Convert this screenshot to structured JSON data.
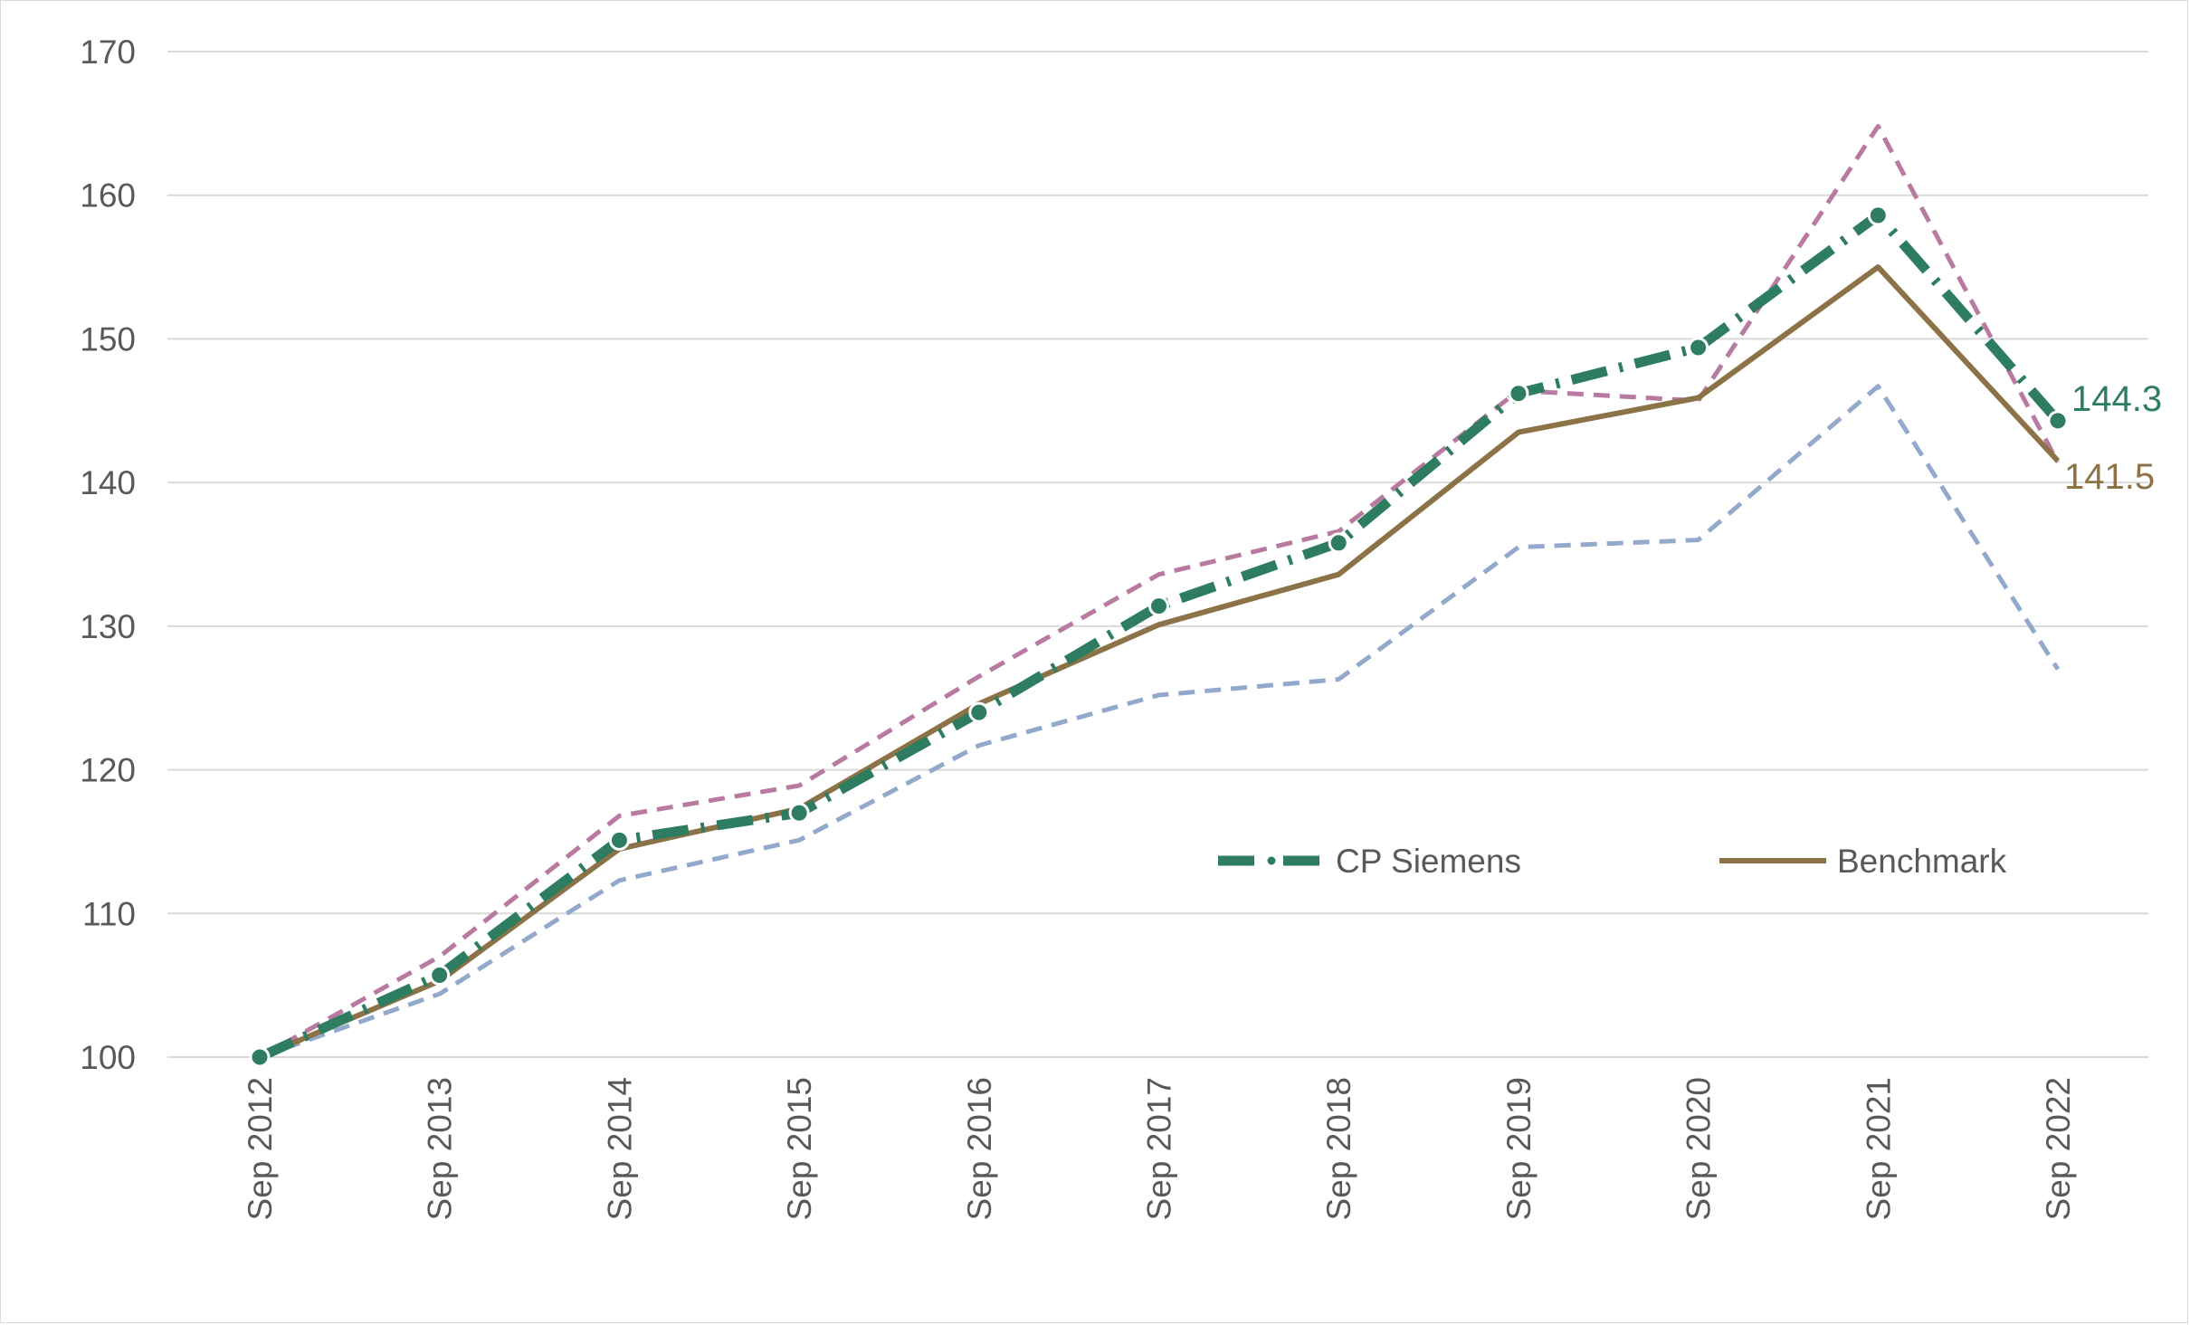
{
  "chart_data": {
    "type": "line",
    "categories": [
      "Sep 2012",
      "Sep 2013",
      "Sep 2014",
      "Sep 2015",
      "Sep 2016",
      "Sep 2017",
      "Sep 2018",
      "Sep 2019",
      "Sep 2020",
      "Sep 2021",
      "Sep 2022"
    ],
    "ylim": [
      100,
      170
    ],
    "yticks": [
      100,
      110,
      120,
      130,
      140,
      150,
      160,
      170
    ],
    "grid": true,
    "legend_position": "lower-right",
    "series": [
      {
        "key": "upper",
        "values": [
          100,
          107.0,
          116.8,
          118.9,
          126.5,
          133.6,
          136.6,
          146.4,
          145.7,
          164.8,
          141.4
        ],
        "color": "#b87aa0",
        "style": "dashed"
      },
      {
        "key": "lower",
        "values": [
          100,
          104.4,
          112.3,
          115.1,
          121.7,
          125.2,
          126.3,
          135.5,
          136.0,
          146.7,
          127.0
        ],
        "color": "#93a9cc",
        "style": "dashed"
      },
      {
        "key": "benchmark",
        "name": "Benchmark",
        "values": [
          100,
          105.3,
          114.5,
          117.3,
          124.6,
          130.1,
          133.6,
          143.5,
          145.9,
          155.0,
          141.5
        ],
        "color": "#8c7247",
        "style": "solid"
      },
      {
        "key": "cp",
        "name": "CP Siemens",
        "values": [
          100,
          105.7,
          115.1,
          117.0,
          124.0,
          131.4,
          135.8,
          146.2,
          149.4,
          158.6,
          144.3
        ],
        "color": "#2e7d60",
        "style": "dash-dot-markers"
      }
    ],
    "end_labels": {
      "cp": "144.3",
      "benchmark": "141.5"
    },
    "legend": {
      "cp": "CP Siemens",
      "benchmark": "Benchmark"
    }
  }
}
